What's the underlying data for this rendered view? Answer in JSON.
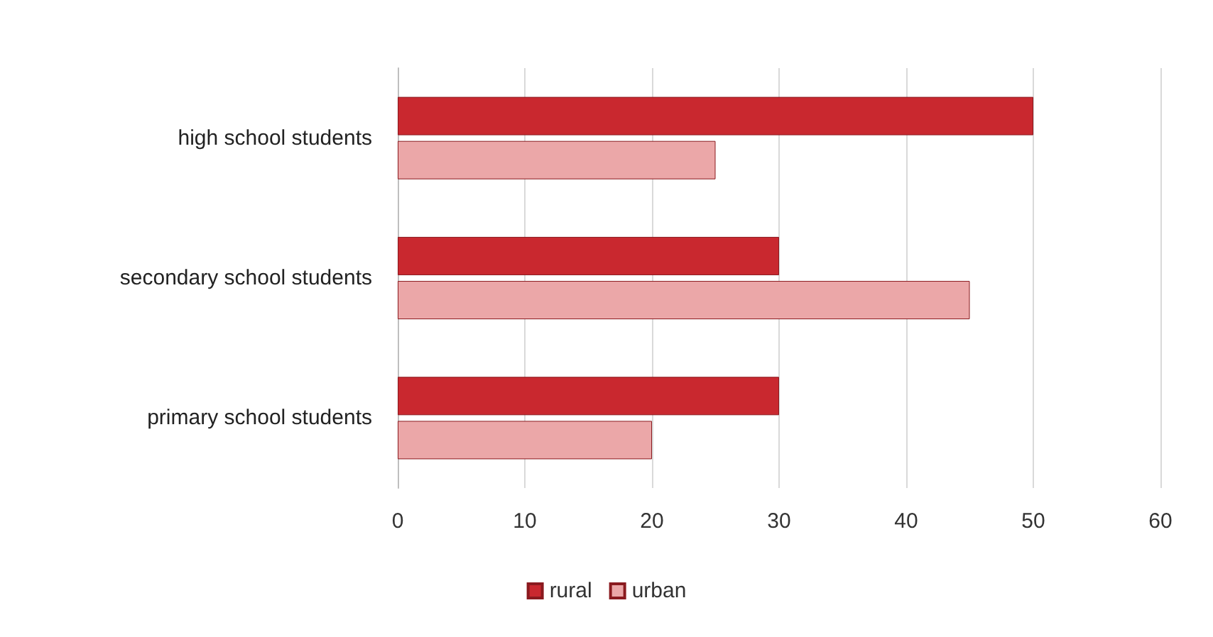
{
  "chart_data": {
    "type": "bar",
    "orientation": "horizontal",
    "categories": [
      "high school students",
      "secondary school students",
      "primary school students"
    ],
    "series": [
      {
        "name": "rural",
        "color": "#c9282f",
        "values": [
          50,
          30,
          30
        ]
      },
      {
        "name": "urban",
        "color": "#eba7a8",
        "values": [
          25,
          45,
          20
        ]
      }
    ],
    "xlim": [
      0,
      60
    ],
    "xticks": [
      0,
      10,
      20,
      30,
      40,
      50,
      60
    ],
    "grid": "x",
    "legend": "bottom"
  }
}
